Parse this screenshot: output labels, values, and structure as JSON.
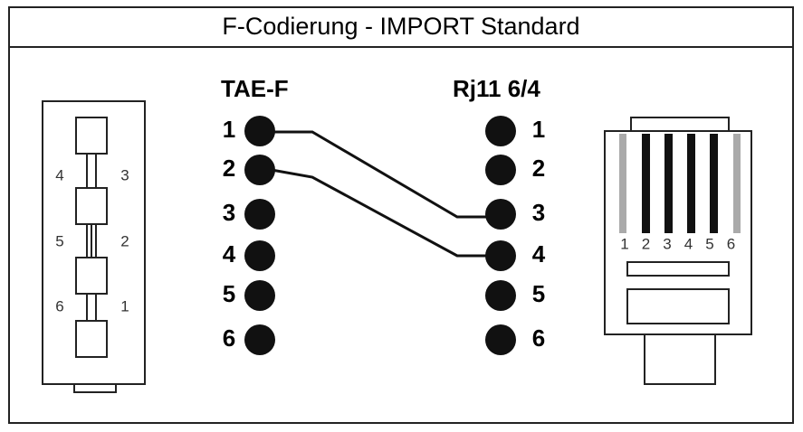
{
  "header": {
    "title": "F-Codierung -  IMPORT  Standard"
  },
  "left_connector": {
    "label": "TAE-F",
    "pins": [
      "1",
      "2",
      "3",
      "4",
      "5",
      "6"
    ],
    "drawing_labels": [
      "4",
      "3",
      "5",
      "2",
      "6",
      "1"
    ]
  },
  "right_connector": {
    "label": "Rj11 6/4",
    "pins": [
      "1",
      "2",
      "3",
      "4",
      "5",
      "6"
    ],
    "drawing_labels": [
      "1",
      "2",
      "3",
      "4",
      "5",
      "6"
    ]
  }
}
